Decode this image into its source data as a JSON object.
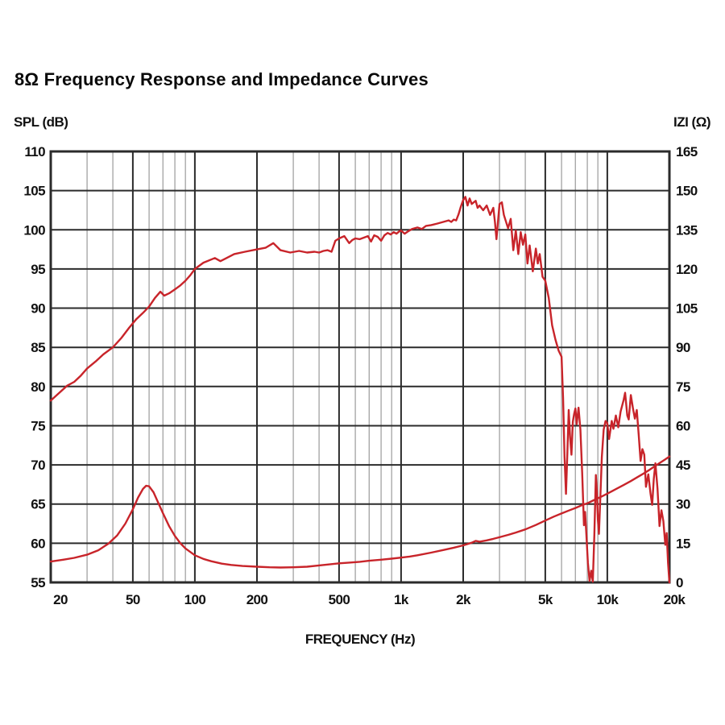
{
  "title": "8Ω Frequency Response and Impedance Curves",
  "chart_data": {
    "type": "line",
    "title": "8Ω Frequency Response and Impedance Curves",
    "xlabel": "FREQUENCY (Hz)",
    "ylabel_left": "SPL (dB)",
    "ylabel_right": "IZI (Ω)",
    "x_scale": "log",
    "x_range": [
      20,
      20000
    ],
    "y_left_range": [
      55,
      110
    ],
    "y_right_range": [
      0,
      165
    ],
    "y_left_ticks": [
      110,
      105,
      100,
      95,
      90,
      85,
      80,
      75,
      70,
      65,
      60,
      55
    ],
    "y_right_ticks": [
      165,
      150,
      135,
      120,
      105,
      90,
      75,
      60,
      45,
      30,
      15,
      0
    ],
    "x_ticks": [
      {
        "value": 20,
        "label": "20"
      },
      {
        "value": 50,
        "label": "50"
      },
      {
        "value": 100,
        "label": "100"
      },
      {
        "value": 200,
        "label": "200"
      },
      {
        "value": 500,
        "label": "500"
      },
      {
        "value": 1000,
        "label": "1k"
      },
      {
        "value": 2000,
        "label": "2k"
      },
      {
        "value": 5000,
        "label": "5k"
      },
      {
        "value": 10000,
        "label": "10k"
      },
      {
        "value": 20000,
        "label": "20k"
      }
    ],
    "x_minor_gridlines": [
      30,
      40,
      60,
      70,
      80,
      90,
      300,
      400,
      600,
      700,
      800,
      900,
      3000,
      4000,
      6000,
      7000,
      8000,
      9000
    ],
    "grid": true,
    "legend_position": "none",
    "colors": {
      "curve": "#c8242a",
      "grid_major": "#2b2b2b",
      "grid_minor": "#a9a9a9",
      "border": "#2b2b2b",
      "background": "#ffffff",
      "text": "#111111"
    },
    "series": [
      {
        "name": "SPL",
        "axis": "left",
        "unit": "dB",
        "color": "#c8242a",
        "points": [
          [
            20,
            78.2
          ],
          [
            22,
            79.2
          ],
          [
            24,
            80.1
          ],
          [
            26,
            80.6
          ],
          [
            28,
            81.4
          ],
          [
            30,
            82.3
          ],
          [
            33,
            83.2
          ],
          [
            36,
            84.1
          ],
          [
            40,
            85.0
          ],
          [
            44,
            86.2
          ],
          [
            48,
            87.5
          ],
          [
            52,
            88.6
          ],
          [
            56,
            89.4
          ],
          [
            60,
            90.2
          ],
          [
            64,
            91.3
          ],
          [
            68,
            92.1
          ],
          [
            71,
            91.6
          ],
          [
            75,
            91.9
          ],
          [
            80,
            92.4
          ],
          [
            85,
            92.9
          ],
          [
            90,
            93.5
          ],
          [
            95,
            94.2
          ],
          [
            100,
            95.0
          ],
          [
            110,
            95.8
          ],
          [
            125,
            96.4
          ],
          [
            133,
            96.0
          ],
          [
            140,
            96.3
          ],
          [
            155,
            96.9
          ],
          [
            175,
            97.2
          ],
          [
            200,
            97.5
          ],
          [
            220,
            97.7
          ],
          [
            240,
            98.3
          ],
          [
            260,
            97.4
          ],
          [
            290,
            97.1
          ],
          [
            320,
            97.3
          ],
          [
            350,
            97.1
          ],
          [
            380,
            97.2
          ],
          [
            400,
            97.1
          ],
          [
            420,
            97.3
          ],
          [
            440,
            97.4
          ],
          [
            460,
            97.2
          ],
          [
            480,
            98.6
          ],
          [
            500,
            98.9
          ],
          [
            530,
            99.2
          ],
          [
            560,
            98.3
          ],
          [
            580,
            98.7
          ],
          [
            600,
            98.9
          ],
          [
            630,
            98.8
          ],
          [
            660,
            99.0
          ],
          [
            690,
            99.2
          ],
          [
            715,
            98.5
          ],
          [
            740,
            99.3
          ],
          [
            770,
            99.1
          ],
          [
            800,
            98.6
          ],
          [
            830,
            99.3
          ],
          [
            860,
            99.6
          ],
          [
            890,
            99.4
          ],
          [
            920,
            99.7
          ],
          [
            950,
            99.5
          ],
          [
            980,
            99.8
          ],
          [
            1000,
            99.9
          ],
          [
            1040,
            99.5
          ],
          [
            1080,
            99.8
          ],
          [
            1130,
            100.1
          ],
          [
            1200,
            100.3
          ],
          [
            1260,
            100.1
          ],
          [
            1320,
            100.5
          ],
          [
            1400,
            100.6
          ],
          [
            1500,
            100.8
          ],
          [
            1600,
            101.0
          ],
          [
            1700,
            101.2
          ],
          [
            1750,
            101.0
          ],
          [
            1800,
            101.3
          ],
          [
            1850,
            101.2
          ],
          [
            1900,
            102.0
          ],
          [
            1950,
            103.0
          ],
          [
            2000,
            103.8
          ],
          [
            2050,
            104.2
          ],
          [
            2100,
            103.1
          ],
          [
            2150,
            104.0
          ],
          [
            2200,
            103.3
          ],
          [
            2300,
            103.7
          ],
          [
            2350,
            102.8
          ],
          [
            2400,
            103.1
          ],
          [
            2500,
            102.5
          ],
          [
            2600,
            103.1
          ],
          [
            2700,
            101.9
          ],
          [
            2800,
            102.8
          ],
          [
            2850,
            101.0
          ],
          [
            2900,
            98.8
          ],
          [
            3000,
            103.3
          ],
          [
            3080,
            103.5
          ],
          [
            3150,
            101.9
          ],
          [
            3300,
            100.2
          ],
          [
            3400,
            101.4
          ],
          [
            3500,
            97.4
          ],
          [
            3600,
            99.9
          ],
          [
            3700,
            96.9
          ],
          [
            3800,
            99.7
          ],
          [
            3900,
            98.1
          ],
          [
            4000,
            99.4
          ],
          [
            4100,
            95.7
          ],
          [
            4200,
            98.0
          ],
          [
            4350,
            94.7
          ],
          [
            4500,
            97.6
          ],
          [
            4600,
            95.7
          ],
          [
            4700,
            96.9
          ],
          [
            4850,
            94.0
          ],
          [
            5000,
            93.5
          ],
          [
            5200,
            91.3
          ],
          [
            5400,
            87.8
          ],
          [
            5600,
            86.0
          ],
          [
            5800,
            84.6
          ],
          [
            6000,
            83.8
          ],
          [
            6100,
            78.5
          ],
          [
            6200,
            71.0
          ],
          [
            6300,
            66.3
          ],
          [
            6400,
            71.5
          ],
          [
            6500,
            77.0
          ],
          [
            6600,
            73.5
          ],
          [
            6700,
            71.3
          ],
          [
            6800,
            75.5
          ],
          [
            6900,
            76.5
          ],
          [
            7000,
            77.2
          ],
          [
            7100,
            75.2
          ],
          [
            7250,
            77.3
          ],
          [
            7400,
            74.5
          ],
          [
            7550,
            69.0
          ],
          [
            7700,
            62.3
          ],
          [
            7800,
            64.0
          ],
          [
            7900,
            61.5
          ],
          [
            8050,
            57.5
          ],
          [
            8200,
            55.2
          ],
          [
            8350,
            56.5
          ],
          [
            8500,
            55.1
          ],
          [
            8650,
            61.0
          ],
          [
            8800,
            68.7
          ],
          [
            8900,
            66.5
          ],
          [
            9000,
            63.0
          ],
          [
            9100,
            61.2
          ],
          [
            9250,
            66.0
          ],
          [
            9400,
            71.0
          ],
          [
            9600,
            74.5
          ],
          [
            9800,
            75.6
          ],
          [
            10000,
            75.3
          ],
          [
            10200,
            73.3
          ],
          [
            10500,
            75.6
          ],
          [
            10700,
            74.6
          ],
          [
            11000,
            76.3
          ],
          [
            11300,
            74.8
          ],
          [
            11600,
            76.8
          ],
          [
            12000,
            78.3
          ],
          [
            12200,
            79.2
          ],
          [
            12500,
            76.3
          ],
          [
            12700,
            75.8
          ],
          [
            13000,
            78.9
          ],
          [
            13300,
            77.3
          ],
          [
            13600,
            75.9
          ],
          [
            13900,
            77.0
          ],
          [
            14200,
            73.8
          ],
          [
            14500,
            70.5
          ],
          [
            14800,
            72.0
          ],
          [
            15100,
            71.3
          ],
          [
            15400,
            67.2
          ],
          [
            15800,
            68.8
          ],
          [
            16200,
            66.3
          ],
          [
            16500,
            64.9
          ],
          [
            16800,
            68.2
          ],
          [
            17100,
            70.2
          ],
          [
            17500,
            67.0
          ],
          [
            17900,
            62.2
          ],
          [
            18300,
            64.2
          ],
          [
            18700,
            62.8
          ],
          [
            19100,
            59.8
          ],
          [
            19400,
            61.3
          ],
          [
            19700,
            57.5
          ],
          [
            20000,
            55.0
          ]
        ]
      },
      {
        "name": "Impedance",
        "axis": "right",
        "unit": "Ω",
        "color": "#c8242a",
        "points": [
          [
            20,
            8.0
          ],
          [
            23,
            8.7
          ],
          [
            26,
            9.4
          ],
          [
            30,
            10.6
          ],
          [
            34,
            12.3
          ],
          [
            38,
            14.8
          ],
          [
            42,
            18.0
          ],
          [
            46,
            22.5
          ],
          [
            50,
            28.0
          ],
          [
            53,
            32.5
          ],
          [
            56,
            35.8
          ],
          [
            58,
            37.0
          ],
          [
            60,
            36.8
          ],
          [
            63,
            34.5
          ],
          [
            66,
            31.0
          ],
          [
            70,
            26.5
          ],
          [
            75,
            21.5
          ],
          [
            80,
            17.8
          ],
          [
            85,
            15.0
          ],
          [
            90,
            13.0
          ],
          [
            100,
            10.4
          ],
          [
            110,
            9.0
          ],
          [
            120,
            8.1
          ],
          [
            135,
            7.2
          ],
          [
            150,
            6.7
          ],
          [
            170,
            6.3
          ],
          [
            200,
            6.0
          ],
          [
            230,
            5.8
          ],
          [
            260,
            5.7
          ],
          [
            300,
            5.8
          ],
          [
            350,
            6.0
          ],
          [
            400,
            6.5
          ],
          [
            450,
            6.9
          ],
          [
            500,
            7.3
          ],
          [
            560,
            7.6
          ],
          [
            630,
            7.9
          ],
          [
            700,
            8.3
          ],
          [
            800,
            8.7
          ],
          [
            900,
            9.1
          ],
          [
            1000,
            9.5
          ],
          [
            1100,
            9.9
          ],
          [
            1200,
            10.4
          ],
          [
            1400,
            11.4
          ],
          [
            1600,
            12.4
          ],
          [
            1800,
            13.3
          ],
          [
            2000,
            14.2
          ],
          [
            2200,
            15.2
          ],
          [
            2300,
            15.9
          ],
          [
            2400,
            15.6
          ],
          [
            2600,
            16.1
          ],
          [
            2800,
            16.7
          ],
          [
            3000,
            17.3
          ],
          [
            3300,
            18.2
          ],
          [
            3600,
            19.1
          ],
          [
            4000,
            20.3
          ],
          [
            4500,
            22.0
          ],
          [
            5000,
            23.7
          ],
          [
            5500,
            25.2
          ],
          [
            6000,
            26.4
          ],
          [
            6500,
            27.5
          ],
          [
            7000,
            28.5
          ],
          [
            7500,
            29.5
          ],
          [
            8000,
            30.3
          ],
          [
            8500,
            31.3
          ],
          [
            9000,
            32.2
          ],
          [
            9500,
            33.1
          ],
          [
            10000,
            34.0
          ],
          [
            11000,
            35.7
          ],
          [
            12000,
            37.3
          ],
          [
            13000,
            38.8
          ],
          [
            14000,
            40.3
          ],
          [
            15000,
            41.7
          ],
          [
            16000,
            43.1
          ],
          [
            17000,
            44.5
          ],
          [
            18000,
            45.8
          ],
          [
            19000,
            47.0
          ],
          [
            20000,
            48.2
          ]
        ]
      }
    ]
  }
}
